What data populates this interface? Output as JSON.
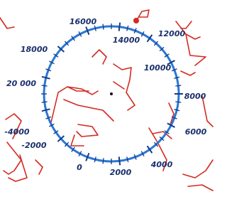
{
  "labels": [
    "16000",
    "14000",
    "12000",
    "10000",
    "8000",
    "6000",
    "4000",
    "2000",
    "0",
    "-2000",
    "-4000",
    "20 000",
    "18000"
  ]
}
